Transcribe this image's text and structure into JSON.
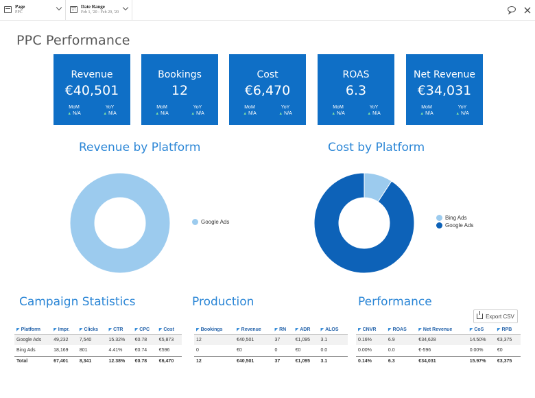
{
  "filters": [
    {
      "label": "Page",
      "value": "PPC",
      "icon": "page-icon"
    },
    {
      "label": "Date Range",
      "value": "Feb 1, '20 - Feb 29, '20",
      "icon": "calendar-icon"
    }
  ],
  "top_icons": [
    "comment-icon",
    "close-icon"
  ],
  "page_title": "PPC Performance",
  "kpis": [
    {
      "label": "Revenue",
      "value": "€40,501",
      "mom_label": "MoM",
      "mom_value": "N/A",
      "yoy_label": "YoY",
      "yoy_value": "N/A"
    },
    {
      "label": "Bookings",
      "value": "12",
      "mom_label": "MoM",
      "mom_value": "N/A",
      "yoy_label": "YoY",
      "yoy_value": "N/A"
    },
    {
      "label": "Cost",
      "value": "€6,470",
      "mom_label": "MoM",
      "mom_value": "N/A",
      "yoy_label": "YoY",
      "yoy_value": "N/A"
    },
    {
      "label": "ROAS",
      "value": "6.3",
      "mom_label": "MoM",
      "mom_value": "N/A",
      "yoy_label": "YoY",
      "yoy_value": "N/A"
    },
    {
      "label": "Net Revenue",
      "value": "€34,031",
      "mom_label": "MoM",
      "mom_value": "N/A",
      "yoy_label": "YoY",
      "yoy_value": "N/A"
    }
  ],
  "colors": {
    "kpi_bg": "#0f6fc6",
    "light_blue": "#9ccbee",
    "dark_blue": "#0d62b8",
    "title_blue": "#2b86d6"
  },
  "chart_data": [
    {
      "type": "pie",
      "title": "Revenue by Platform",
      "donut": true,
      "legend_position": "right",
      "slices": [
        {
          "label": "Google Ads",
          "value": 40501,
          "color": "#9ccbee"
        }
      ]
    },
    {
      "type": "pie",
      "title": "Cost by Platform",
      "donut": true,
      "legend_position": "right",
      "slices": [
        {
          "label": "Bing Ads",
          "value": 596,
          "color": "#9ccbee"
        },
        {
          "label": "Google Ads",
          "value": 5873,
          "color": "#0d62b8"
        }
      ]
    }
  ],
  "sections": {
    "campaign": "Campaign Statistics",
    "production": "Production",
    "performance": "Performance"
  },
  "export_label": "Export CSV",
  "campaign_table": {
    "headers": [
      "Platform",
      "Impr.",
      "Clicks",
      "CTR",
      "CPC",
      "Cost"
    ],
    "rows": [
      [
        "Google Ads",
        "49,232",
        "7,540",
        "15.32%",
        "€0.78",
        "€5,873"
      ],
      [
        "Bing Ads",
        "18,169",
        "801",
        "4.41%",
        "€0.74",
        "€596"
      ]
    ],
    "total": [
      "Total",
      "67,401",
      "8,341",
      "12.38%",
      "€0.78",
      "€6,470"
    ]
  },
  "production_table": {
    "headers": [
      "Bookings",
      "Revenue",
      "RN",
      "ADR",
      "ALOS"
    ],
    "rows": [
      [
        "12",
        "€40,501",
        "37",
        "€1,095",
        "3.1"
      ],
      [
        "0",
        "€0",
        "0",
        "€0",
        "0.0"
      ]
    ],
    "total": [
      "12",
      "€40,501",
      "37",
      "€1,095",
      "3.1"
    ]
  },
  "performance_table": {
    "headers": [
      "CNVR",
      "ROAS",
      "Net Revenue",
      "CoS",
      "RPB"
    ],
    "rows": [
      [
        "0.16%",
        "6.9",
        "€34,628",
        "14.50%",
        "€3,375"
      ],
      [
        "0.00%",
        "0.0",
        "€-596",
        "0.00%",
        "€0"
      ]
    ],
    "total": [
      "0.14%",
      "6.3",
      "€34,031",
      "15.97%",
      "€3,375"
    ]
  }
}
